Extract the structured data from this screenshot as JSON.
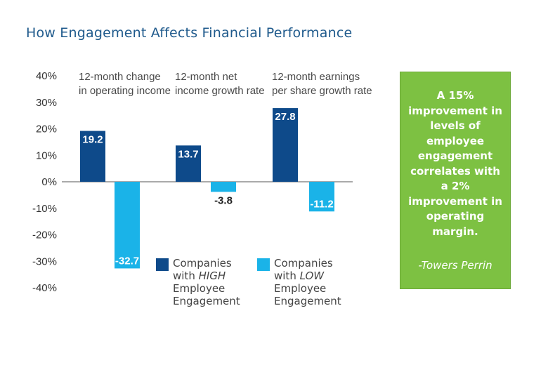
{
  "title": "How Engagement Affects Financial Performance",
  "colors": {
    "high": "#0e4a8a",
    "low": "#1ab3e8",
    "callout": "#7dc142",
    "title": "#1f5a8c"
  },
  "chart_data": {
    "type": "bar",
    "ylim": [
      -40,
      40
    ],
    "yticks": [
      "40%",
      "30%",
      "20%",
      "10%",
      "0%",
      "-10%",
      "-20%",
      "-30%",
      "-40%"
    ],
    "categories": [
      [
        "12-month change",
        "in operating income"
      ],
      [
        "12-month net",
        "income growth rate"
      ],
      [
        "12-month earnings",
        "per share growth rate"
      ]
    ],
    "value_labels": [
      [
        "19.2",
        "-32.7"
      ],
      [
        "13.7",
        "-3.8"
      ],
      [
        "27.8",
        "-11.2"
      ]
    ],
    "series": [
      {
        "values": [
          19.2,
          13.7,
          27.8
        ]
      },
      {
        "values": [
          -32.7,
          -3.8,
          -11.2
        ]
      }
    ]
  },
  "legend": [
    {
      "line1": "Companies",
      "line2_prefix": "with ",
      "line2_emph": "HIGH",
      "line3": "Employee",
      "line4": "Engagement"
    },
    {
      "line1": "Companies",
      "line2_prefix": "with ",
      "line2_emph": "LOW",
      "line3": "Employee",
      "line4": "Engagement"
    }
  ],
  "callout": {
    "text": "A 15% improvement in levels of employee engagement correlates with a 2% improvement in operating margin.",
    "source": "-Towers Perrin"
  }
}
